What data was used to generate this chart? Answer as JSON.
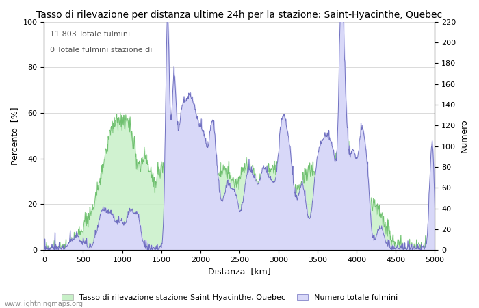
{
  "title": "Tasso di rilevazione per distanza ultime 24h per la stazione: Saint-Hyacinthe, Quebec",
  "xlabel": "Distanza  [km]",
  "ylabel_left": "Percento  [%]",
  "ylabel_right": "Numero",
  "xlim": [
    0,
    5000
  ],
  "ylim_left": [
    0,
    100
  ],
  "ylim_right": [
    0,
    220
  ],
  "annotation1": "11.803 Totale fulmini",
  "annotation2": "0 Totale fulmini stazione di",
  "legend1": "Tasso di rilevazione stazione Saint-Hyacinthe, Quebec",
  "legend2": "Numero totale fulmini",
  "color_green": "#c8f0c8",
  "color_blue": "#d8d8f8",
  "color_line_blue": "#7070c0",
  "color_line_green": "#70c070",
  "watermark": "www.lightningmaps.org",
  "background_color": "#ffffff",
  "plot_bg_color": "#ffffff",
  "title_fontsize": 10,
  "label_fontsize": 9,
  "tick_fontsize": 8,
  "annot_fontsize": 8
}
